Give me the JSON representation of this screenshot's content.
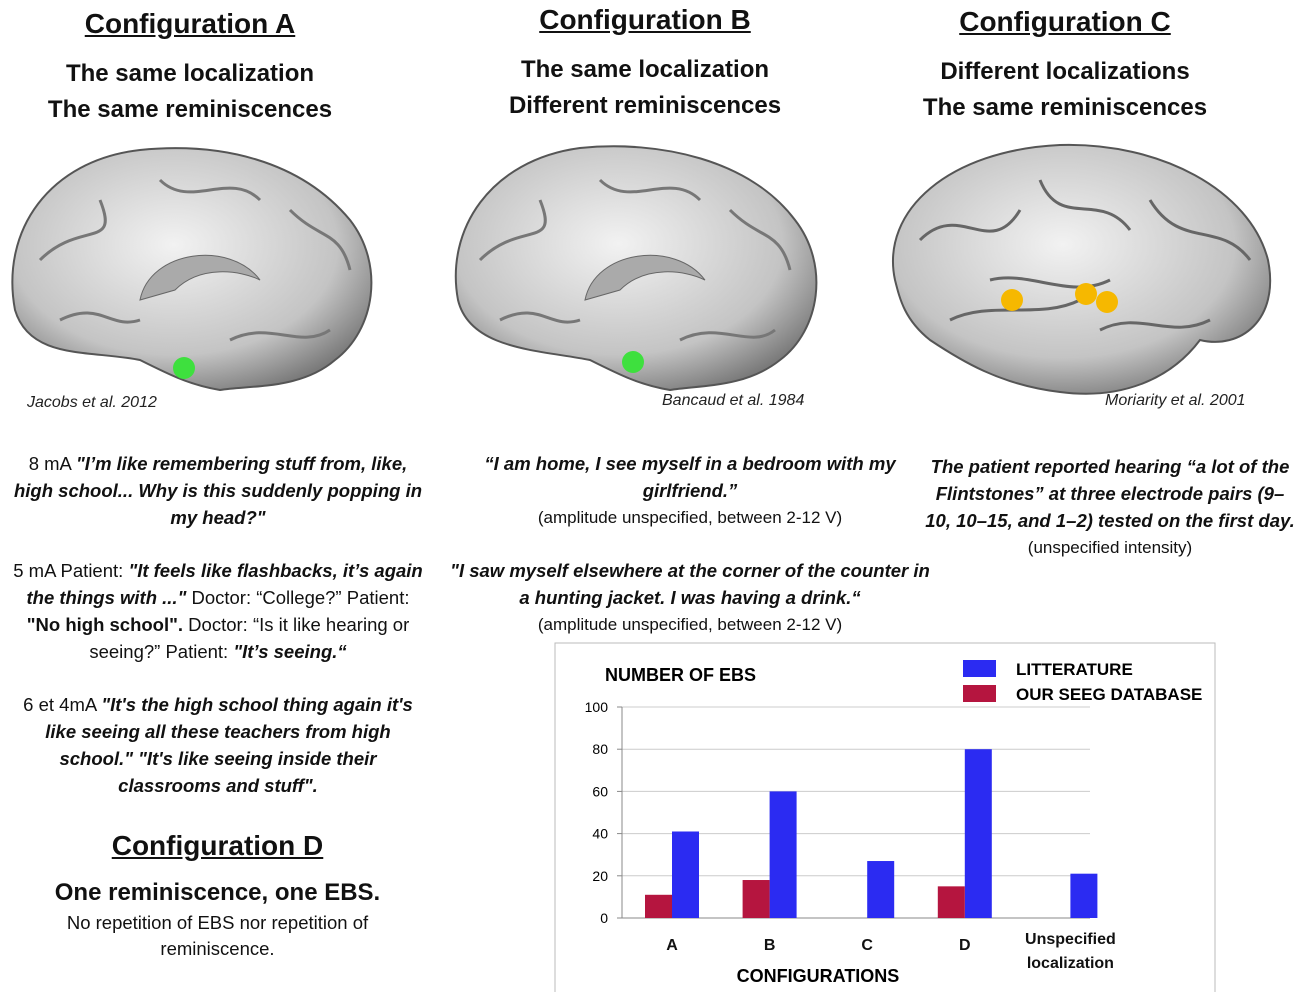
{
  "configurations": [
    {
      "title": "Configuration A",
      "subtitle": [
        "The same localization",
        "The same reminiscences"
      ],
      "citation": "Jacobs et al. 2012",
      "paragraphs": [
        [
          {
            "text": "8 mA ",
            "style": "r"
          },
          {
            "text": "\"I’m like remembering stuff from, like, high school... Why is this suddenly popping in my head?\"",
            "style": "bi"
          }
        ],
        [
          {
            "text": "5 mA  Patient: ",
            "style": "r"
          },
          {
            "text": "\"It feels like flashbacks, it’s again the things with ...\"",
            "style": "bi"
          },
          {
            "text": " Doctor: “College?” Patient: ",
            "style": "r"
          },
          {
            "text": "\"No high school\".",
            "style": "b"
          },
          {
            "text": " Doctor: “Is it like hearing or seeing?” Patient: ",
            "style": "r"
          },
          {
            "text": "\"It’s seeing.“",
            "style": "bi"
          }
        ],
        [
          {
            "text": "6 et 4mA  ",
            "style": "r"
          },
          {
            "text": "\"It's the high school thing again it's like seeing all these teachers from high school.\" \"It's like seeing inside their classrooms and stuff\".",
            "style": "bi"
          }
        ]
      ]
    },
    {
      "title": "Configuration B",
      "subtitle": [
        "The same localization",
        "Different reminiscences"
      ],
      "citation": "Bancaud et al. 1984",
      "paragraphs": [
        [
          {
            "text": "“I am home, I see myself in a bedroom with my girlfriend.”",
            "style": "bi"
          },
          {
            "text": "(amplitude unspecified, between 2-12 V)",
            "style": "note"
          }
        ],
        [
          {
            "text": "\"I saw myself elsewhere at the corner of the counter in a hunting jacket. I was having a drink.“",
            "style": "bi"
          },
          {
            "text": "(amplitude unspecified, between 2-12 V)",
            "style": "note"
          }
        ]
      ]
    },
    {
      "title": "Configuration C",
      "subtitle": [
        "Different localizations",
        "The same reminiscences"
      ],
      "citation": "Moriarity et al. 2001",
      "paragraphs": [
        [
          {
            "text": "The patient reported hearing “a lot of the Flintstones” at three electrode pairs (9–10, 10–15, and 1–2) tested on the first day.",
            "style": "bi"
          },
          {
            "text": "(unspecified intensity)",
            "style": "note"
          }
        ]
      ]
    }
  ],
  "configuration_d": {
    "title": "Configuration D",
    "paragraphs": [
      [
        {
          "text": "One reminiscence, one EBS.",
          "style": "lead"
        }
      ],
      [
        {
          "text": "No repetition of EBS nor repetition of reminiscence.",
          "style": "r"
        }
      ]
    ]
  },
  "chart_data": {
    "type": "bar",
    "title": "NUMBER OF EBS",
    "x_label": "CONFIGURATIONS",
    "categories": [
      "A",
      "B",
      "C",
      "D",
      "Unspecified localization"
    ],
    "series": [
      {
        "name": "LITTERATURE",
        "color": "#2b2bf2",
        "values": [
          41,
          60,
          27,
          80,
          21
        ]
      },
      {
        "name": "OUR SEEG DATABASE",
        "color": "#b5153f",
        "values": [
          11,
          18,
          null,
          15,
          null
        ]
      }
    ],
    "ylim": [
      0,
      100
    ],
    "yticks": [
      0,
      20,
      40,
      60,
      80,
      100
    ],
    "grid": true
  }
}
